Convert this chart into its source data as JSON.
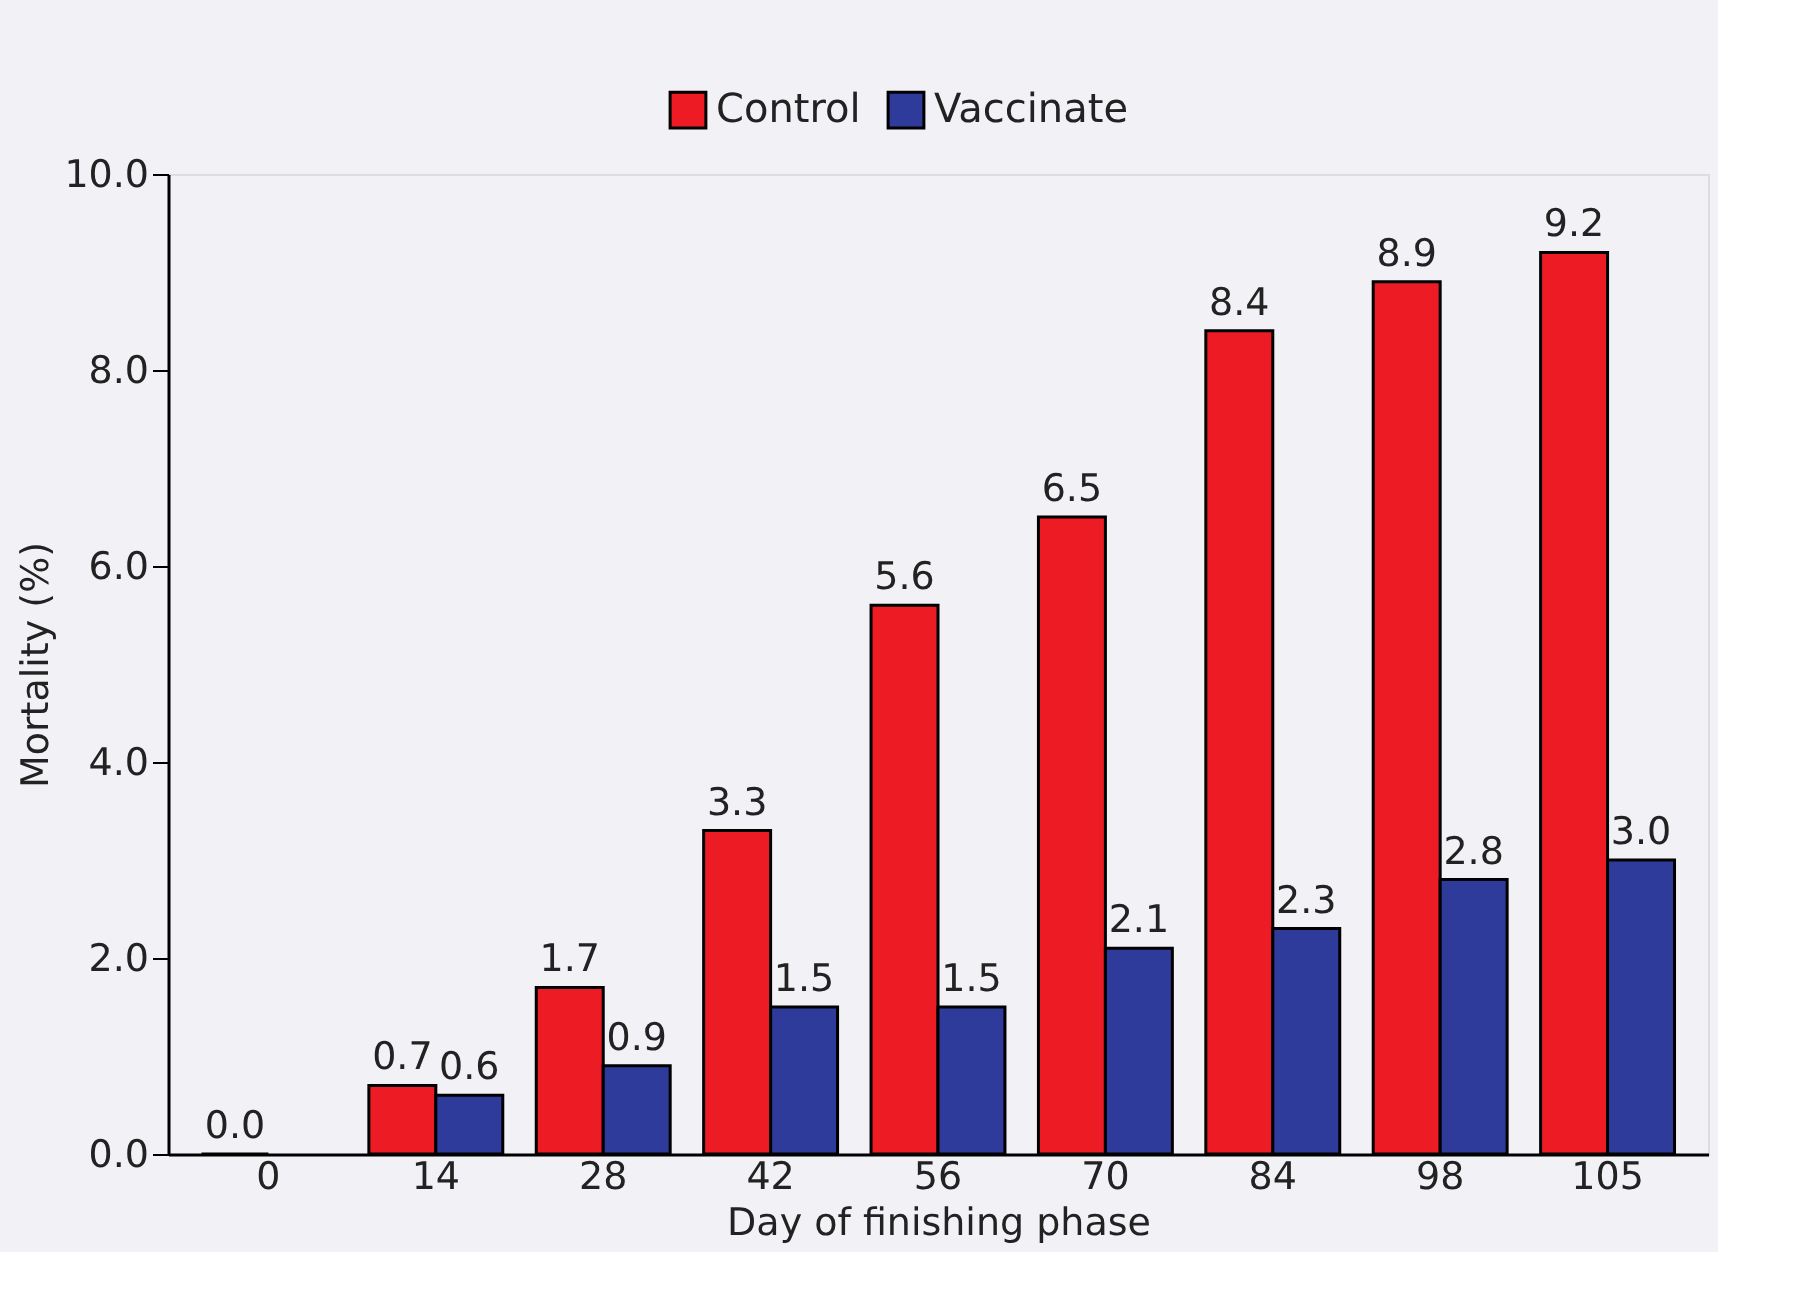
{
  "chart_data": {
    "type": "bar",
    "xlabel": "Day of finishing phase",
    "ylabel": "Mortality (%)",
    "categories": [
      "0",
      "14",
      "28",
      "42",
      "56",
      "70",
      "84",
      "98",
      "105"
    ],
    "series": [
      {
        "name": "Control",
        "color": "#ed1c24",
        "values": [
          0.0,
          0.7,
          1.7,
          3.3,
          5.6,
          6.5,
          8.4,
          8.9,
          9.2
        ],
        "value_labels": [
          "0.0",
          "0.7",
          "1.7",
          "3.3",
          "5.6",
          "6.5",
          "8.4",
          "8.9",
          "9.2"
        ]
      },
      {
        "name": "Vaccinate",
        "color": "#2e3b9a",
        "values": [
          null,
          0.6,
          0.9,
          1.5,
          1.5,
          2.1,
          2.3,
          2.8,
          3.0
        ],
        "value_labels": [
          null,
          "0.6",
          "0.9",
          "1.5",
          "1.5",
          "2.1",
          "2.3",
          "2.8",
          "3.0"
        ]
      }
    ],
    "ylim": [
      0,
      10
    ],
    "yticks": [
      {
        "value": 0,
        "label": "0.0"
      },
      {
        "value": 2,
        "label": "2.0"
      },
      {
        "value": 4,
        "label": "4.0"
      },
      {
        "value": 6,
        "label": "6.0"
      },
      {
        "value": 8,
        "label": "8.0"
      },
      {
        "value": 10,
        "label": "10.0"
      }
    ],
    "legend": "top",
    "grid": false
  }
}
